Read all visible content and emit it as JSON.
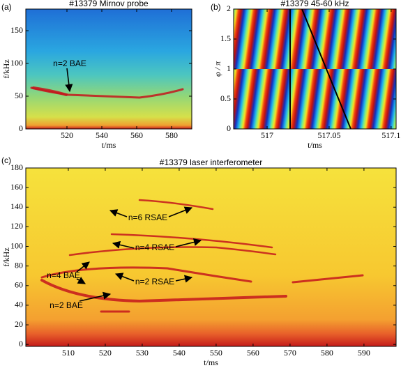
{
  "chart_data": [
    {
      "type": "spectrogram",
      "panel_label": "(a)",
      "title": "#13379    Mirnov probe",
      "xlabel": "t/ms",
      "ylabel": "f/kHz",
      "xlim": [
        496.4,
        591.6
      ],
      "ylim": [
        0,
        183
      ],
      "xticks": [
        520,
        540,
        560,
        580
      ],
      "yticks": [
        0,
        50,
        100,
        150
      ],
      "annotations": [
        "n=2 BAE"
      ]
    },
    {
      "type": "phase-map",
      "panel_label": "(b)",
      "title": "#13379 45-60 kHz",
      "xlabel": "t/ms",
      "ylabel": "φ / π",
      "xlim": [
        516.973,
        517.104
      ],
      "ylim": [
        0,
        2
      ],
      "xticks": [
        517,
        517.05,
        517.1
      ],
      "yticks": [
        0,
        0.5,
        1,
        1.5,
        2
      ],
      "annotations": []
    },
    {
      "type": "spectrogram",
      "panel_label": "(c)",
      "title": "#13379     laser interferometer",
      "xlabel": "t/ms",
      "ylabel": "f/kHz",
      "xlim": [
        498.5,
        598.7
      ],
      "ylim": [
        -2,
        180
      ],
      "xticks": [
        510,
        520,
        530,
        540,
        550,
        560,
        570,
        580,
        590
      ],
      "yticks": [
        0,
        20,
        40,
        60,
        80,
        100,
        120,
        140,
        160,
        180
      ],
      "annotations": [
        "n=6 RSAE",
        "n=4 RSAE",
        "n=2 RSAE",
        "n=4 BAE",
        "n=2 BAE"
      ]
    }
  ]
}
